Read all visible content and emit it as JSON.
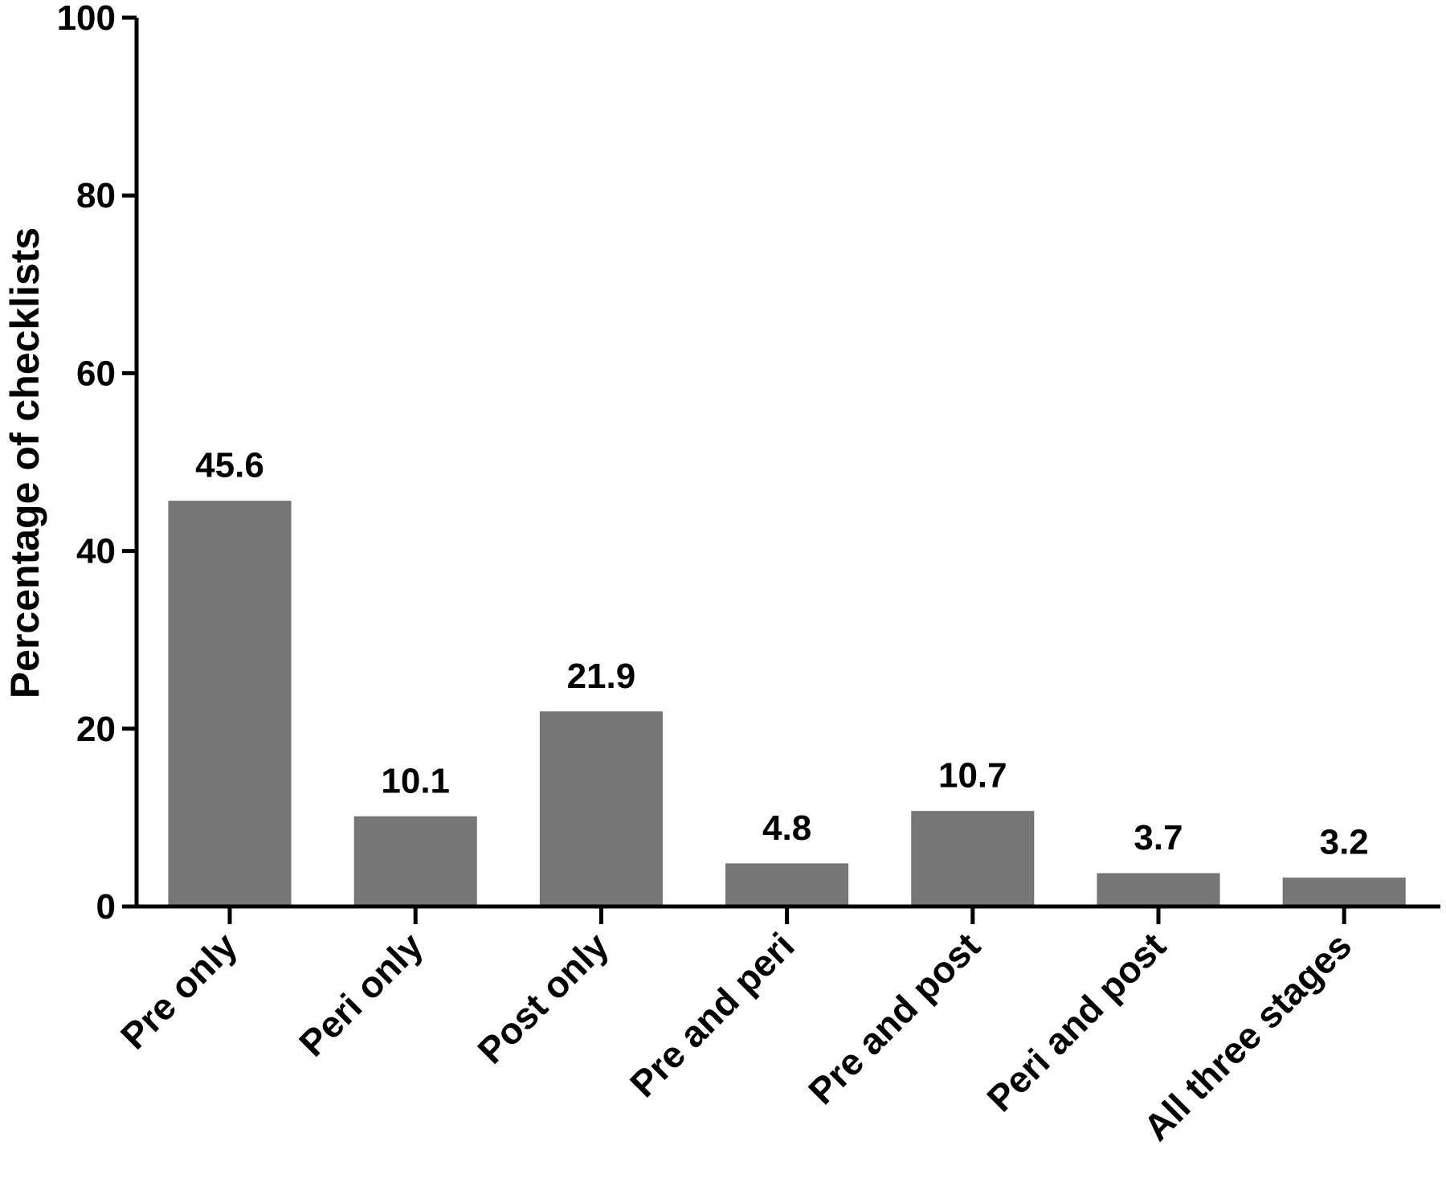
{
  "chart_data": {
    "type": "bar",
    "categories": [
      "Pre only",
      "Peri only",
      "Post only",
      "Pre and peri",
      "Pre and post",
      "Peri and post",
      "All three stages"
    ],
    "values": [
      45.6,
      10.1,
      21.9,
      4.8,
      10.7,
      3.7,
      3.2
    ],
    "value_labels": [
      "45.6",
      "10.1",
      "21.9",
      "4.8",
      "10.7",
      "3.7",
      "3.2"
    ],
    "title": "",
    "xlabel": "",
    "ylabel": "Percentage of checklists",
    "ylim": [
      0,
      100
    ],
    "yticks": [
      0,
      20,
      40,
      60,
      80,
      100
    ],
    "grid": false,
    "bar_color": "#777777",
    "axis_color": "#000000"
  }
}
